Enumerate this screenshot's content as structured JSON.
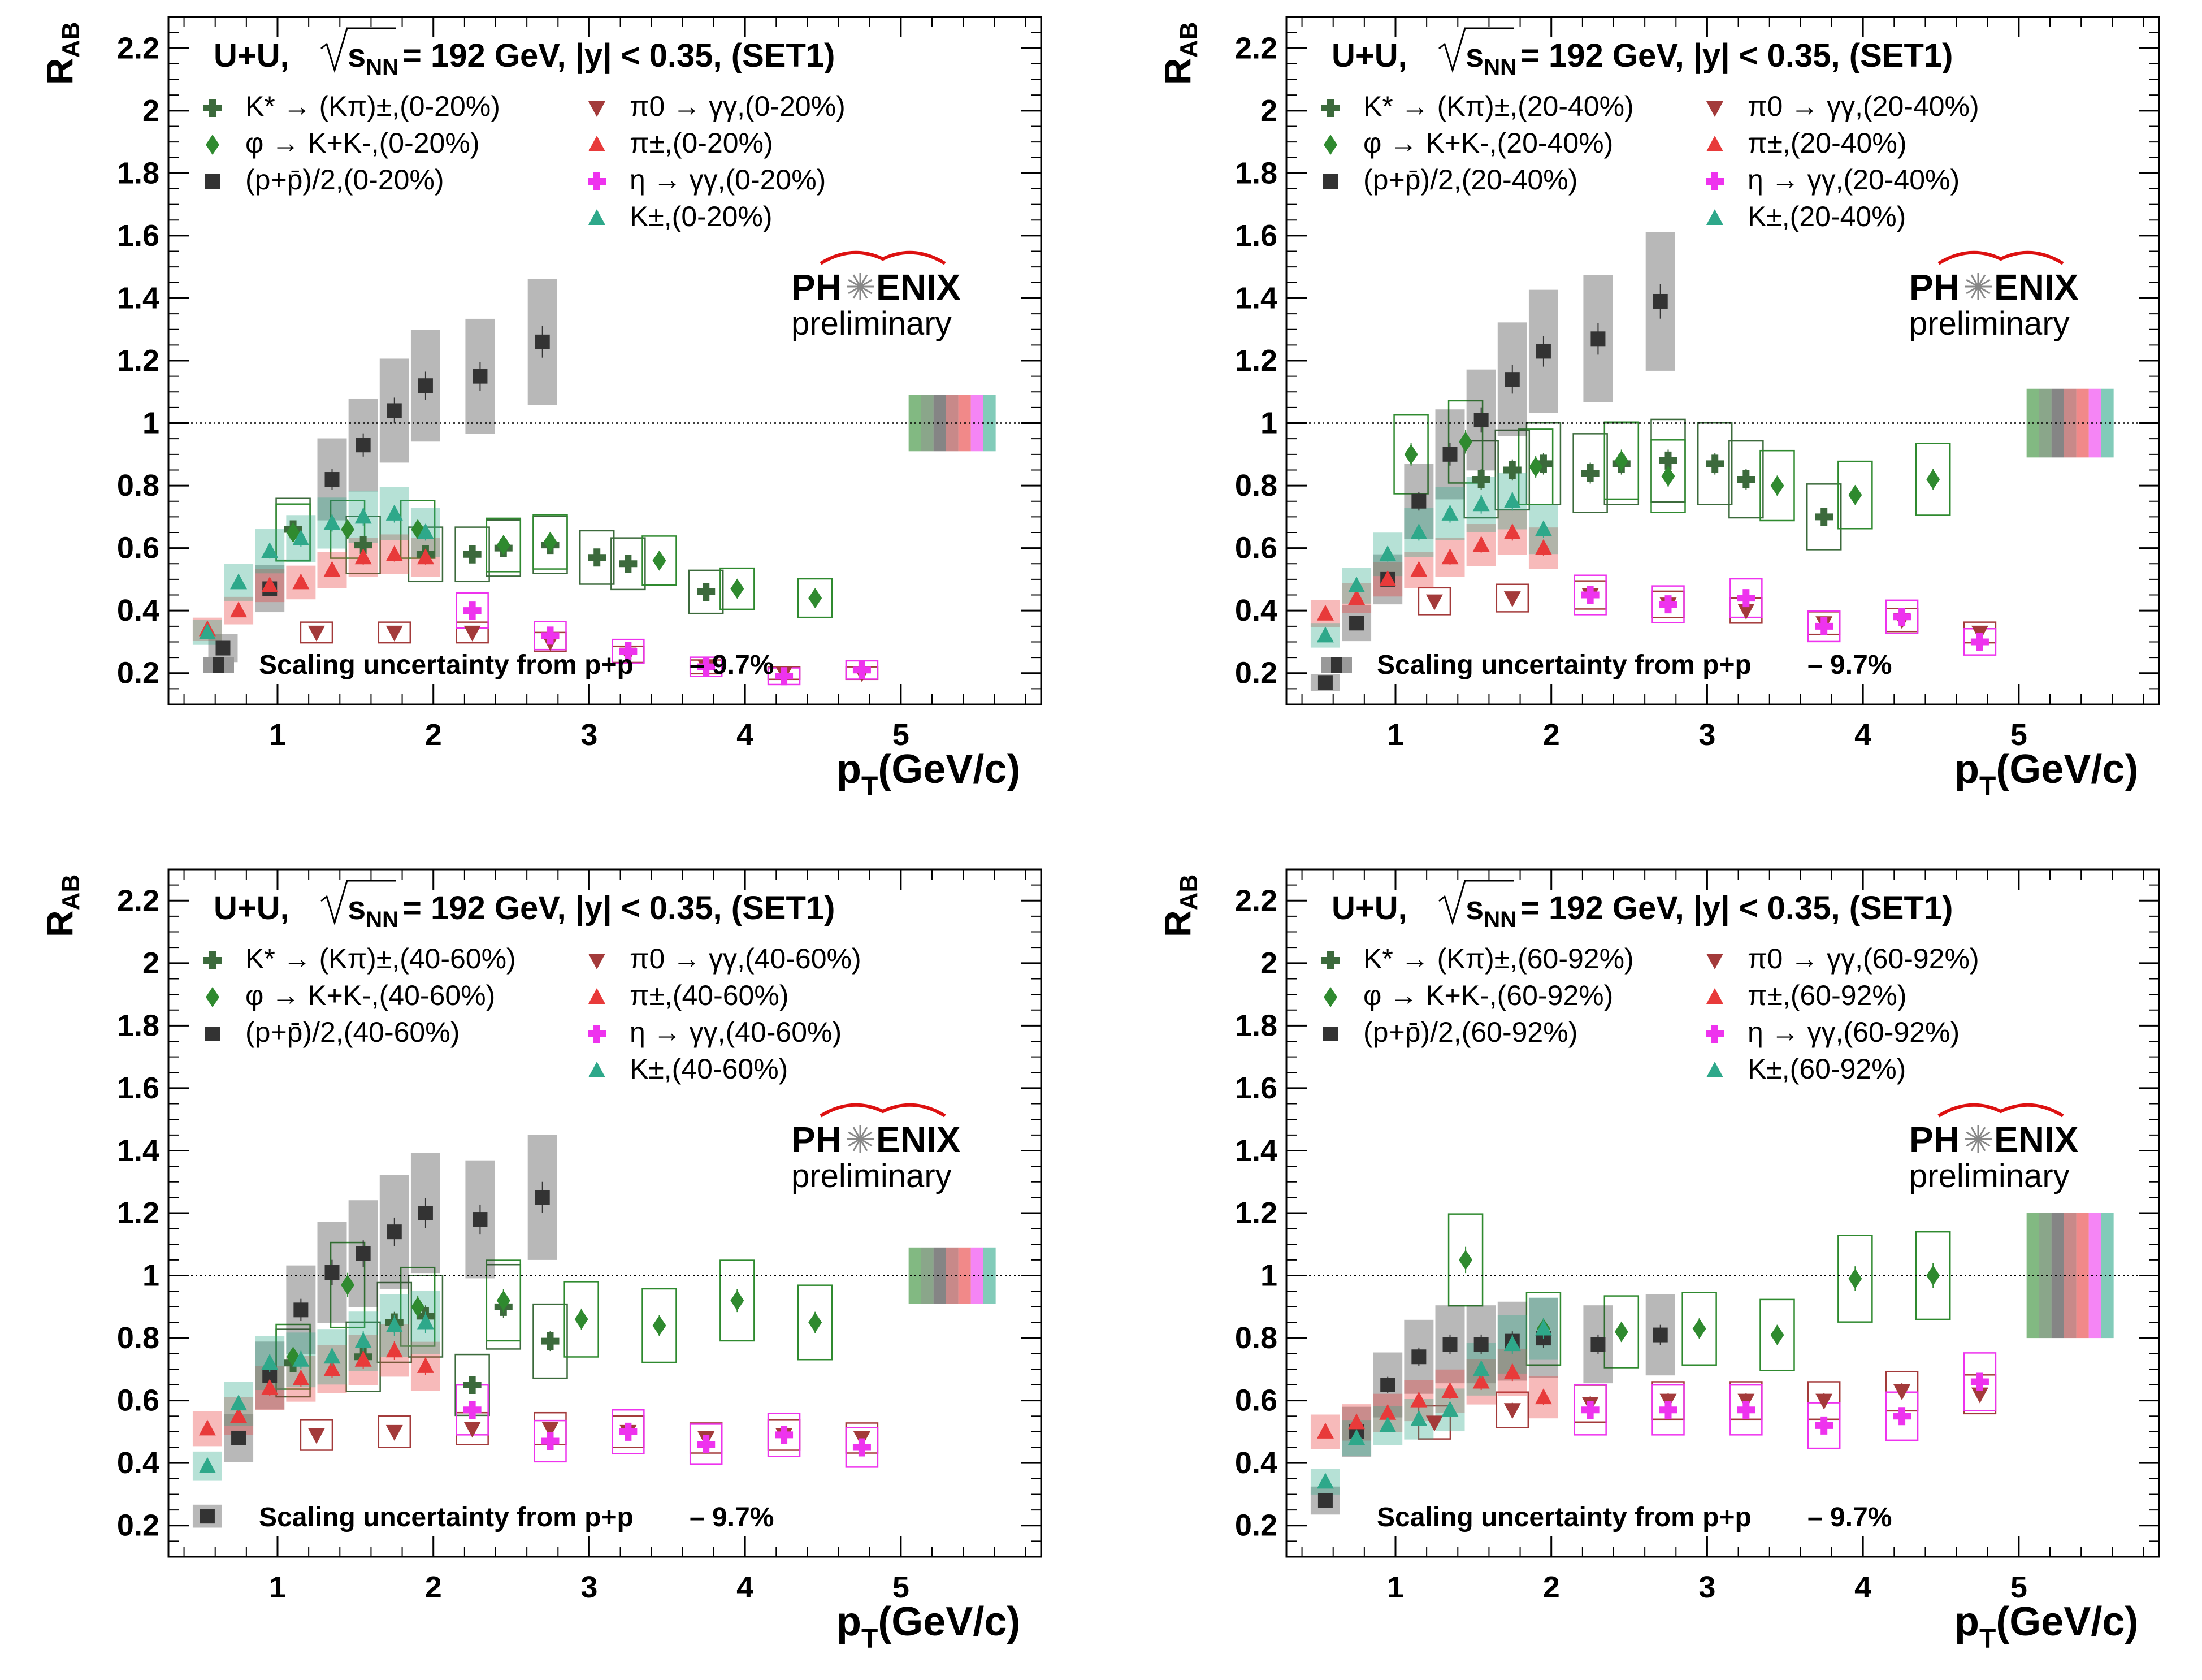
{
  "colors": {
    "kstar": "#3c6a3c",
    "phi": "#2f8a2f",
    "proton": "#333333",
    "pi0": "#a33a3a",
    "pipm": "#e83a3a",
    "eta": "#ee33ee",
    "kpm": "#2ea88a",
    "phenix_red": "#dd1111"
  },
  "common": {
    "ylabel": "R",
    "ylabel_sub": "AB",
    "xlabel": "p",
    "xlabel_sub": "T",
    "xlabel_unit": "(GeV/c)",
    "title_prefix": "U+U,",
    "title_sqrt": "s",
    "title_sqrt_sub": "NN",
    "title_rest": "= 192 GeV, |y| < 0.35, (SET1)",
    "logo_ph": "PH",
    "logo_enix": "ENIX",
    "logo_sub": "preliminary",
    "scaling_text": "Scaling uncertainty from p+p",
    "scaling_value": "– 9.7%",
    "x_ticks": [
      "1",
      "2",
      "3",
      "4",
      "5"
    ],
    "y_ticks": [
      "0.2",
      "0.4",
      "0.6",
      "0.8",
      "1",
      "1.2",
      "1.4",
      "1.6",
      "1.8",
      "2",
      "2.2"
    ]
  },
  "chart_data": [
    {
      "type": "scatter",
      "centrality": "0-20%",
      "xlim": [
        0.3,
        5.9
      ],
      "ylim": [
        0.1,
        2.3
      ],
      "legend": [
        "K* → (Kπ)±,(0-20%)",
        "φ → K+K-,(0-20%)",
        "(p+p̄)/2,(0-20%)",
        "π0 → γγ,(0-20%)",
        "π±,(0-20%)",
        "η → γγ,(0-20%)",
        "K±,(0-20%)"
      ],
      "series": [
        {
          "key": "kstar",
          "marker": "cross",
          "x": [
            1.1,
            1.55,
            1.95,
            2.25,
            2.45,
            2.75,
            3.05,
            3.25,
            3.75
          ],
          "y": [
            0.66,
            0.61,
            0.58,
            0.58,
            0.6,
            0.61,
            0.57,
            0.55,
            0.46
          ]
        },
        {
          "key": "phi",
          "marker": "diamond",
          "x": [
            1.1,
            1.45,
            1.9,
            2.45,
            2.75,
            3.45,
            3.95,
            4.45
          ],
          "y": [
            0.65,
            0.66,
            0.66,
            0.61,
            0.62,
            0.56,
            0.47,
            0.44
          ]
        },
        {
          "key": "proton",
          "marker": "square",
          "x": [
            0.65,
            0.95,
            1.35,
            1.55,
            1.75,
            1.95,
            2.3,
            2.7
          ],
          "y": [
            0.28,
            0.47,
            0.82,
            0.93,
            1.04,
            1.12,
            1.15,
            1.26
          ]
        },
        {
          "key": "pi0",
          "marker": "tridown",
          "x": [
            1.25,
            1.75,
            2.25,
            2.75,
            3.25,
            3.75,
            4.25,
            4.75
          ],
          "y": [
            0.33,
            0.33,
            0.33,
            0.3,
            0.26,
            0.22,
            0.2,
            0.2
          ]
        },
        {
          "key": "pipm",
          "marker": "triup",
          "x": [
            0.55,
            0.75,
            0.95,
            1.15,
            1.35,
            1.55,
            1.75,
            1.95
          ],
          "y": [
            0.34,
            0.4,
            0.48,
            0.49,
            0.53,
            0.57,
            0.58,
            0.57
          ]
        },
        {
          "key": "eta",
          "marker": "cross",
          "x": [
            2.25,
            2.75,
            3.25,
            3.75,
            4.25,
            4.75
          ],
          "y": [
            0.4,
            0.32,
            0.27,
            0.22,
            0.19,
            0.21
          ]
        },
        {
          "key": "kpm",
          "marker": "triup",
          "x": [
            0.55,
            0.75,
            0.95,
            1.15,
            1.35,
            1.55,
            1.75,
            1.95
          ],
          "y": [
            0.33,
            0.49,
            0.59,
            0.63,
            0.68,
            0.7,
            0.71,
            0.65
          ]
        }
      ]
    },
    {
      "type": "scatter",
      "centrality": "20-40%",
      "xlim": [
        0.3,
        5.9
      ],
      "ylim": [
        0.1,
        2.3
      ],
      "legend": [
        "K* → (Kπ)±,(20-40%)",
        "φ → K+K-,(20-40%)",
        "(p+p̄)/2,(20-40%)",
        "π0 → γγ,(20-40%)",
        "π±,(20-40%)",
        "η → γγ,(20-40%)",
        "K±,(20-40%)"
      ],
      "series": [
        {
          "key": "kstar",
          "marker": "cross",
          "x": [
            1.55,
            1.75,
            1.95,
            2.25,
            2.45,
            2.75,
            3.05,
            3.25,
            3.75
          ],
          "y": [
            0.82,
            0.85,
            0.87,
            0.84,
            0.87,
            0.88,
            0.87,
            0.82,
            0.7
          ]
        },
        {
          "key": "phi",
          "marker": "diamond",
          "x": [
            1.1,
            1.45,
            1.9,
            2.45,
            2.75,
            3.45,
            3.95,
            4.45
          ],
          "y": [
            0.9,
            0.94,
            0.86,
            0.88,
            0.83,
            0.8,
            0.77,
            0.82
          ]
        },
        {
          "key": "proton",
          "marker": "square",
          "x": [
            0.55,
            0.75,
            0.95,
            1.15,
            1.35,
            1.55,
            1.75,
            1.95,
            2.3,
            2.7
          ],
          "y": [
            0.17,
            0.36,
            0.5,
            0.75,
            0.9,
            1.01,
            1.14,
            1.23,
            1.27,
            1.39
          ]
        },
        {
          "key": "pi0",
          "marker": "tridown",
          "x": [
            1.25,
            1.75,
            2.25,
            2.75,
            3.25,
            3.75,
            4.25,
            4.75
          ],
          "y": [
            0.43,
            0.44,
            0.45,
            0.42,
            0.4,
            0.36,
            0.37,
            0.33
          ]
        },
        {
          "key": "pipm",
          "marker": "triup",
          "x": [
            0.55,
            0.75,
            0.95,
            1.15,
            1.35,
            1.55,
            1.75,
            1.95
          ],
          "y": [
            0.39,
            0.44,
            0.5,
            0.53,
            0.57,
            0.61,
            0.65,
            0.6
          ]
        },
        {
          "key": "eta",
          "marker": "cross",
          "x": [
            2.25,
            2.75,
            3.25,
            3.75,
            4.25,
            4.75
          ],
          "y": [
            0.45,
            0.42,
            0.44,
            0.35,
            0.38,
            0.3
          ]
        },
        {
          "key": "kpm",
          "marker": "triup",
          "x": [
            0.55,
            0.75,
            0.95,
            1.15,
            1.35,
            1.55,
            1.75,
            1.95
          ],
          "y": [
            0.32,
            0.48,
            0.58,
            0.65,
            0.71,
            0.74,
            0.75,
            0.66
          ]
        }
      ]
    },
    {
      "type": "scatter",
      "centrality": "40-60%",
      "xlim": [
        0.3,
        5.9
      ],
      "ylim": [
        0.1,
        2.3
      ],
      "legend": [
        "K* → (Kπ)±,(40-60%)",
        "φ → K+K-,(40-60%)",
        "(p+p̄)/2,(40-60%)",
        "π0 → γγ,(40-60%)",
        "π±,(40-60%)",
        "η → γγ,(40-60%)",
        "K±,(40-60%)"
      ],
      "series": [
        {
          "key": "kstar",
          "marker": "cross",
          "x": [
            1.1,
            1.55,
            1.75,
            1.95,
            2.25,
            2.45,
            2.75
          ],
          "y": [
            0.72,
            0.74,
            0.85,
            0.87,
            0.65,
            0.9,
            0.79
          ]
        },
        {
          "key": "phi",
          "marker": "diamond",
          "x": [
            1.1,
            1.45,
            1.9,
            2.45,
            2.95,
            3.45,
            3.95,
            4.45
          ],
          "y": [
            0.74,
            0.97,
            0.9,
            0.92,
            0.86,
            0.84,
            0.92,
            0.85
          ]
        },
        {
          "key": "proton",
          "marker": "square",
          "x": [
            0.55,
            0.75,
            0.95,
            1.15,
            1.35,
            1.55,
            1.75,
            1.95,
            2.3,
            2.7
          ],
          "y": [
            0.23,
            0.48,
            0.68,
            0.89,
            1.01,
            1.07,
            1.14,
            1.2,
            1.18,
            1.25
          ]
        },
        {
          "key": "pi0",
          "marker": "tridown",
          "x": [
            1.25,
            1.75,
            2.25,
            2.75,
            3.25,
            3.75,
            4.25,
            4.75
          ],
          "y": [
            0.49,
            0.5,
            0.51,
            0.51,
            0.5,
            0.48,
            0.49,
            0.48
          ]
        },
        {
          "key": "pipm",
          "marker": "triup",
          "x": [
            0.55,
            0.75,
            0.95,
            1.15,
            1.35,
            1.55,
            1.75,
            1.95
          ],
          "y": [
            0.51,
            0.55,
            0.64,
            0.67,
            0.7,
            0.73,
            0.76,
            0.71
          ]
        },
        {
          "key": "eta",
          "marker": "cross",
          "x": [
            2.25,
            2.75,
            3.25,
            3.75,
            4.25,
            4.75
          ],
          "y": [
            0.57,
            0.47,
            0.5,
            0.46,
            0.49,
            0.45
          ]
        },
        {
          "key": "kpm",
          "marker": "triup",
          "x": [
            0.55,
            0.75,
            0.95,
            1.15,
            1.35,
            1.55,
            1.75,
            1.95
          ],
          "y": [
            0.39,
            0.59,
            0.72,
            0.73,
            0.74,
            0.79,
            0.84,
            0.85
          ]
        }
      ]
    },
    {
      "type": "scatter",
      "centrality": "60-92%",
      "xlim": [
        0.3,
        5.9
      ],
      "ylim": [
        0.1,
        2.3
      ],
      "legend": [
        "K* → (Kπ)±,(60-92%)",
        "φ → K+K-,(60-92%)",
        "(p+p̄)/2,(60-92%)",
        "π0 → γγ,(60-92%)",
        "π±,(60-92%)",
        "η → γγ,(60-92%)",
        "K±,(60-92%)"
      ],
      "series": [
        {
          "key": "kstar",
          "marker": "cross",
          "x": [],
          "y": []
        },
        {
          "key": "phi",
          "marker": "diamond",
          "x": [
            1.45,
            1.95,
            2.45,
            2.95,
            3.45,
            3.95,
            4.45
          ],
          "y": [
            1.05,
            0.83,
            0.82,
            0.83,
            0.81,
            0.99,
            1.0
          ]
        },
        {
          "key": "proton",
          "marker": "square",
          "x": [
            0.55,
            0.75,
            0.95,
            1.15,
            1.35,
            1.55,
            1.75,
            1.95,
            2.3,
            2.7
          ],
          "y": [
            0.28,
            0.5,
            0.65,
            0.74,
            0.78,
            0.78,
            0.79,
            0.8,
            0.78,
            0.81
          ]
        },
        {
          "key": "pi0",
          "marker": "tridown",
          "x": [
            1.25,
            1.75,
            2.25,
            2.75,
            3.25,
            3.75,
            4.25,
            4.75
          ],
          "y": [
            0.53,
            0.57,
            0.59,
            0.6,
            0.6,
            0.6,
            0.63,
            0.62
          ]
        },
        {
          "key": "pipm",
          "marker": "triup",
          "x": [
            0.55,
            0.75,
            0.95,
            1.15,
            1.35,
            1.55,
            1.75,
            1.95
          ],
          "y": [
            0.5,
            0.53,
            0.56,
            0.6,
            0.63,
            0.66,
            0.69,
            0.61
          ]
        },
        {
          "key": "eta",
          "marker": "cross",
          "x": [
            2.25,
            2.75,
            3.25,
            3.75,
            4.25,
            4.75
          ],
          "y": [
            0.57,
            0.57,
            0.57,
            0.52,
            0.55,
            0.66
          ]
        },
        {
          "key": "kpm",
          "marker": "triup",
          "x": [
            0.55,
            0.75,
            0.95,
            1.15,
            1.35,
            1.55,
            1.75,
            1.95
          ],
          "y": [
            0.34,
            0.48,
            0.52,
            0.54,
            0.57,
            0.7,
            0.78,
            0.83
          ]
        }
      ]
    }
  ]
}
